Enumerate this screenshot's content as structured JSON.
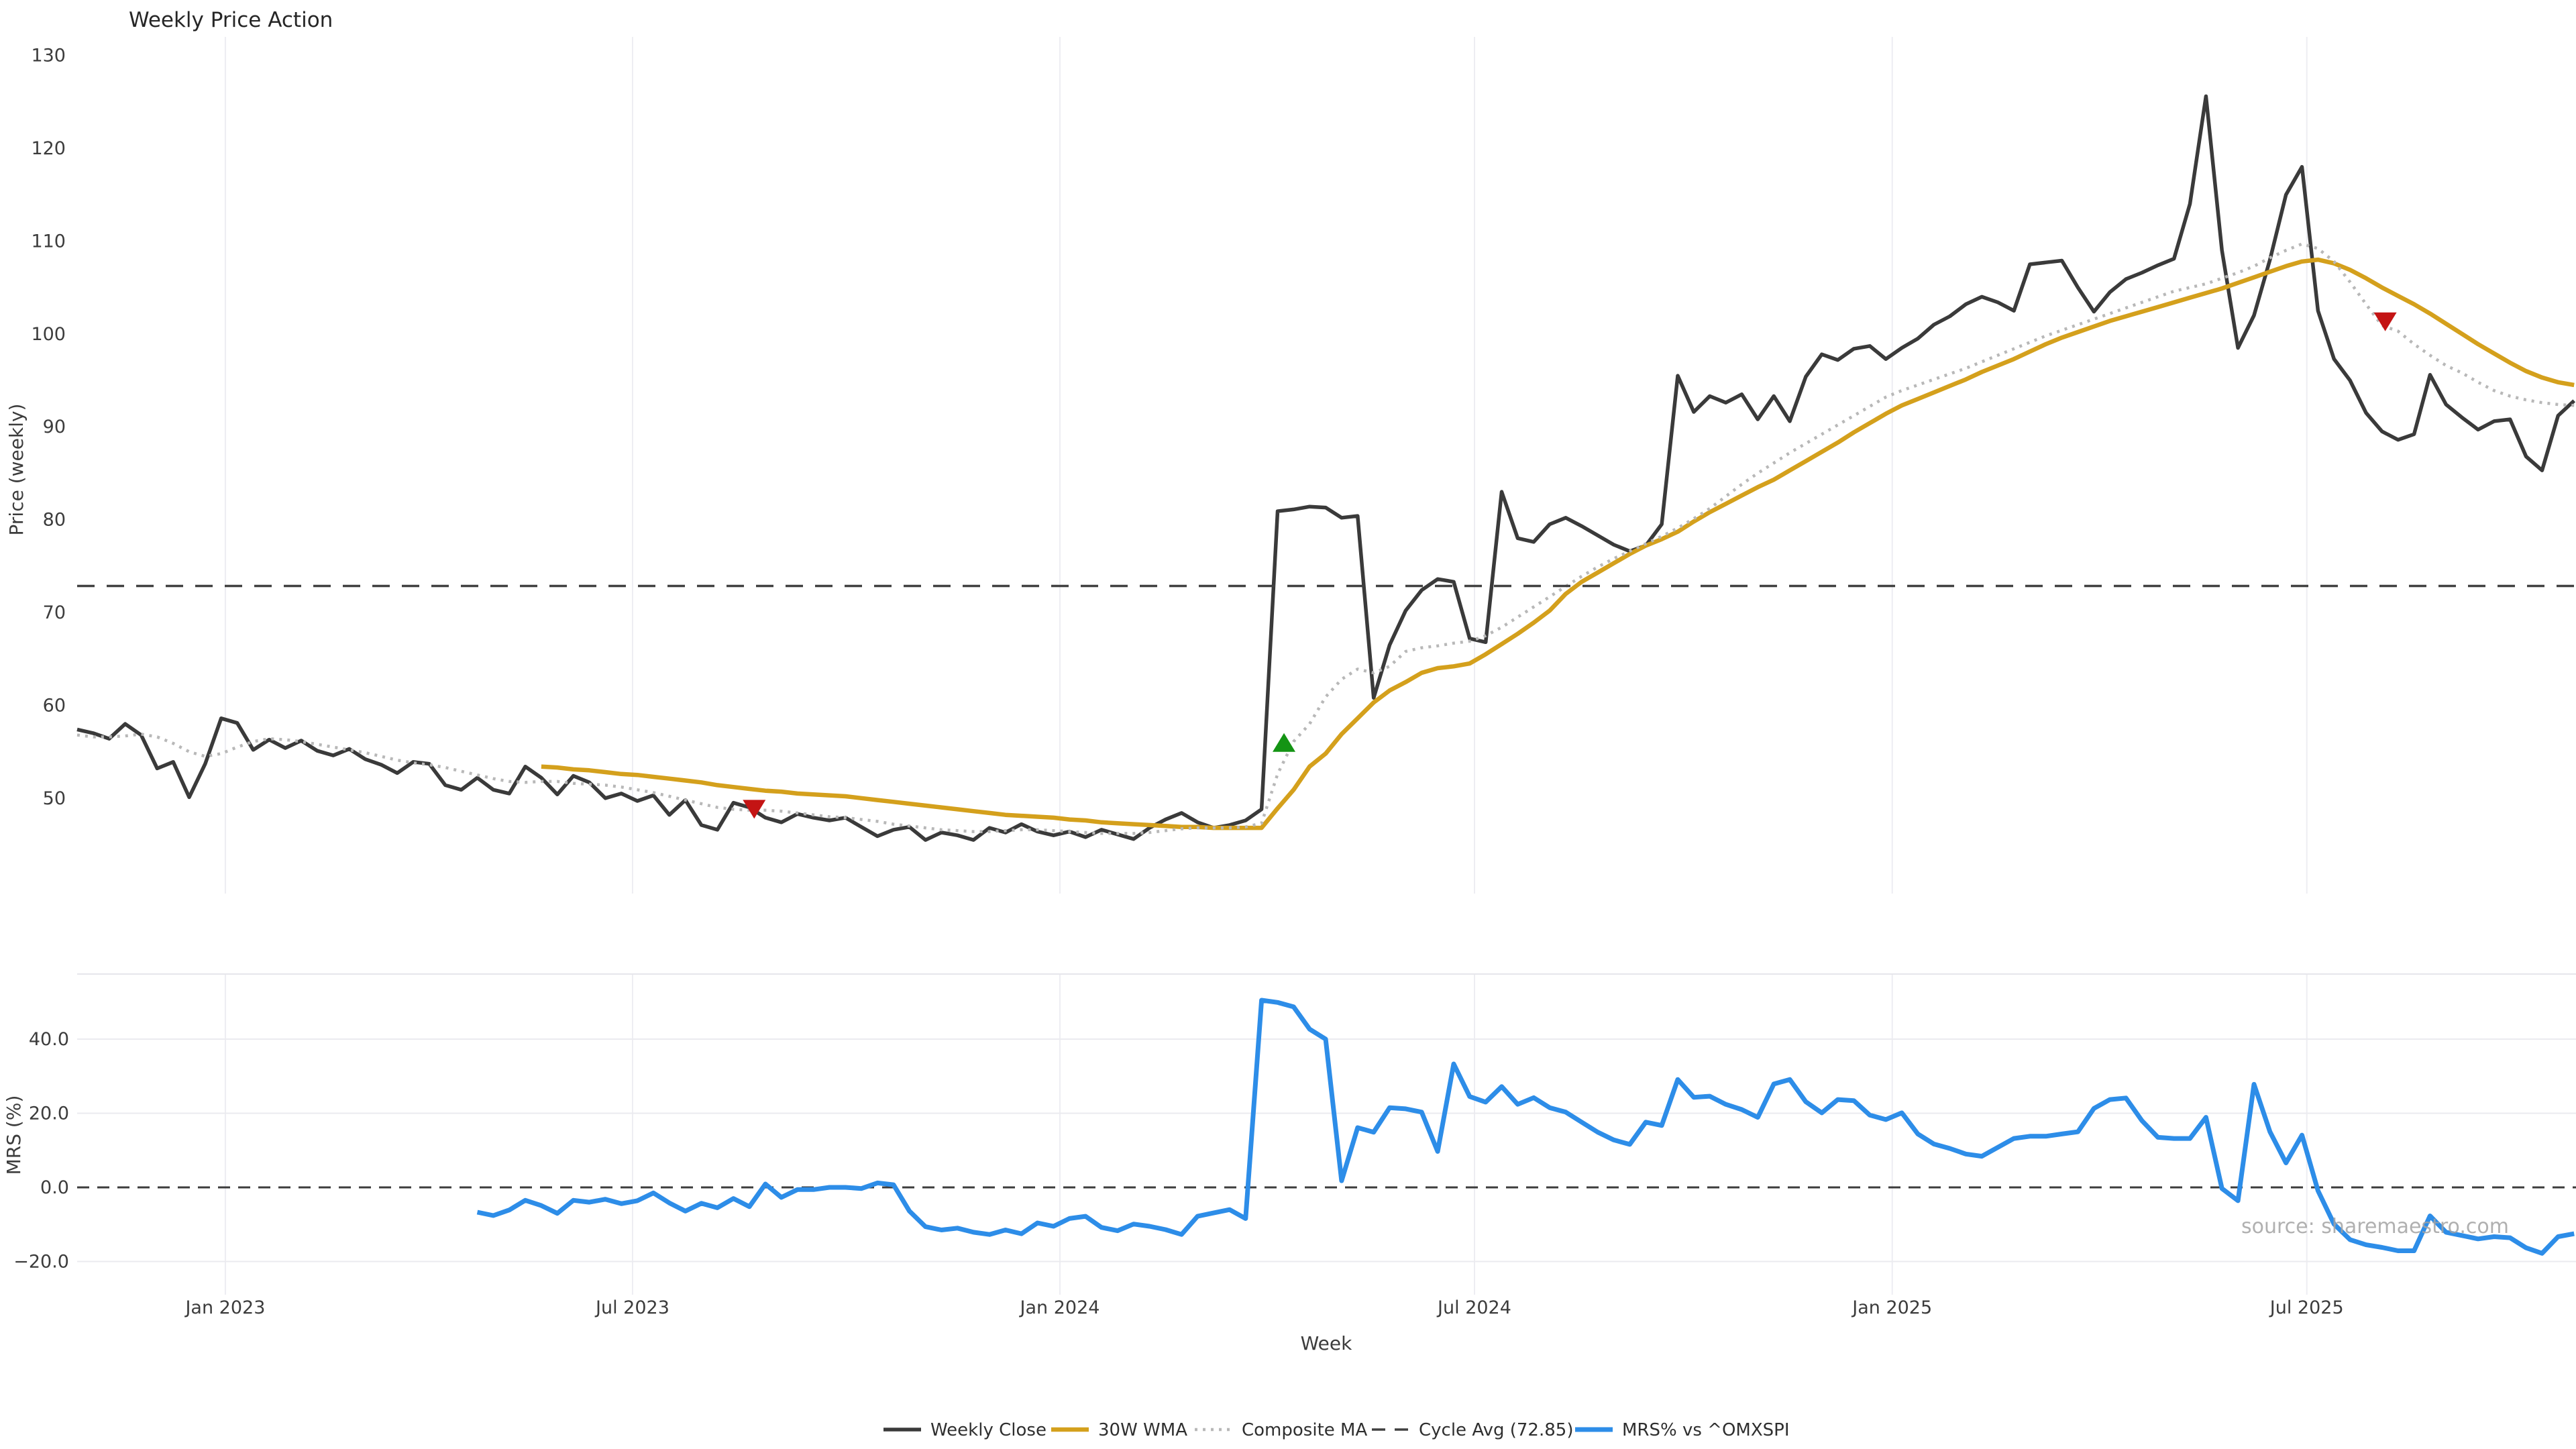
{
  "title": "Weekly Price Action",
  "watermark": "source: sharemaestro.com",
  "colors": {
    "close": "#3a3a3a",
    "wma": "#d4a01c",
    "composite": "#b8b8b8",
    "cycle": "#404040",
    "mrs": "#2d8de8",
    "sell": "#c41414",
    "buy": "#149414",
    "grid": "#ededf2",
    "panel_border": "#e6e6eb"
  },
  "chart_data": {
    "type": "line",
    "title": "Weekly Price Action",
    "xlabel": "Week",
    "weeks_total": 157,
    "x_tick_labels": [
      {
        "label": "Jan 2023",
        "week": 9.26
      },
      {
        "label": "Jul 2023",
        "week": 34.7
      },
      {
        "label": "Jan 2024",
        "week": 61.4
      },
      {
        "label": "Jul 2024",
        "week": 87.3
      },
      {
        "label": "Jan 2025",
        "week": 113.4
      },
      {
        "label": "Jul 2025",
        "week": 139.3
      }
    ],
    "panels": [
      {
        "ylabel": "Price (weekly)",
        "yticks": [
          {
            "label": "130",
            "v": 130
          },
          {
            "label": "120",
            "v": 120
          },
          {
            "label": "110",
            "v": 110
          },
          {
            "label": "100",
            "v": 100
          },
          {
            "label": "90",
            "v": 90
          },
          {
            "label": "80",
            "v": 80
          },
          {
            "label": "70",
            "v": 70
          },
          {
            "label": "60",
            "v": 60
          },
          {
            "label": "50",
            "v": 50
          }
        ],
        "grid_horizontal": false
      },
      {
        "ylabel": "MRS (%)",
        "yticks": [
          {
            "label": "40.0",
            "v": 40
          },
          {
            "label": "20.0",
            "v": 20
          },
          {
            "label": "0.0",
            "v": 0
          },
          {
            "label": "−20.0",
            "v": -20
          }
        ],
        "grid_horizontal": true,
        "zero_line": 0
      }
    ],
    "series": [
      {
        "name": "Weekly Close",
        "panel": 0,
        "style": "solid",
        "width": 5.5,
        "color": "#3a3a3a",
        "start_week": 0,
        "values": [
          57.4,
          57.0,
          56.4,
          58.0,
          56.8,
          53.2,
          53.9,
          50.1,
          53.7,
          58.6,
          58.1,
          55.2,
          56.3,
          55.4,
          56.2,
          55.1,
          54.6,
          55.3,
          54.2,
          53.6,
          52.7,
          53.9,
          53.7,
          51.4,
          50.9,
          52.2,
          50.9,
          50.5,
          53.4,
          52.2,
          50.4,
          52.4,
          51.7,
          50.0,
          50.5,
          49.7,
          50.3,
          48.2,
          49.8,
          47.1,
          46.6,
          49.5,
          49.0,
          47.9,
          47.4,
          48.3,
          47.9,
          47.6,
          47.9,
          46.9,
          45.9,
          46.6,
          46.9,
          45.5,
          46.3,
          46.0,
          45.5,
          46.8,
          46.3,
          47.2,
          46.4,
          46.0,
          46.4,
          45.8,
          46.6,
          46.1,
          45.6,
          46.8,
          47.7,
          48.4,
          47.4,
          46.8,
          47.1,
          47.6,
          48.8,
          80.9,
          81.1,
          81.4,
          81.3,
          80.2,
          80.4,
          60.8,
          66.5,
          70.2,
          72.4,
          73.6,
          73.3,
          67.2,
          66.8,
          83.0,
          78.0,
          77.6,
          79.5,
          80.2,
          79.3,
          78.3,
          77.3,
          76.6,
          77.2,
          79.5,
          95.5,
          91.6,
          93.3,
          92.6,
          93.5,
          90.8,
          93.3,
          90.6,
          95.4,
          97.8,
          97.2,
          98.4,
          98.7,
          97.3,
          98.5,
          99.5,
          101.0,
          101.9,
          103.2,
          104.0,
          103.4,
          102.5,
          107.5,
          107.7,
          107.9,
          105.0,
          102.4,
          104.5,
          105.9,
          106.6,
          107.4,
          108.1,
          114.0,
          125.6,
          109.0,
          98.5,
          102.0,
          108.0,
          115.0,
          118.0,
          102.5,
          97.3,
          95.0,
          91.5,
          89.5,
          88.6,
          89.2,
          95.6,
          92.4,
          91.0,
          89.7,
          90.6,
          90.8,
          86.8,
          85.3,
          91.2,
          92.8
        ]
      },
      {
        "name": "30W WMA",
        "panel": 0,
        "style": "solid",
        "width": 6.5,
        "color": "#d4a01c",
        "start_week": 29,
        "values": [
          53.4,
          53.3,
          53.1,
          53.0,
          52.8,
          52.6,
          52.5,
          52.3,
          52.1,
          51.9,
          51.7,
          51.4,
          51.2,
          51.0,
          50.8,
          50.7,
          50.5,
          50.4,
          50.3,
          50.2,
          50.0,
          49.8,
          49.6,
          49.4,
          49.2,
          49.0,
          48.8,
          48.6,
          48.4,
          48.2,
          48.1,
          48.0,
          47.9,
          47.7,
          47.6,
          47.4,
          47.3,
          47.2,
          47.1,
          47.0,
          46.9,
          46.9,
          46.8,
          46.8,
          46.8,
          46.8,
          48.9,
          50.9,
          53.4,
          54.8,
          56.9,
          58.6,
          60.3,
          61.6,
          62.5,
          63.5,
          64.0,
          64.2,
          64.5,
          65.5,
          66.6,
          67.7,
          68.9,
          70.2,
          72.0,
          73.3,
          74.3,
          75.3,
          76.3,
          77.2,
          77.9,
          78.7,
          79.8,
          80.8,
          81.7,
          82.6,
          83.5,
          84.3,
          85.3,
          86.3,
          87.3,
          88.3,
          89.4,
          90.4,
          91.4,
          92.3,
          93.0,
          93.7,
          94.4,
          95.1,
          95.9,
          96.6,
          97.3,
          98.1,
          98.9,
          99.6,
          100.2,
          100.8,
          101.4,
          101.9,
          102.4,
          102.9,
          103.4,
          103.9,
          104.4,
          104.9,
          105.5,
          106.1,
          106.7,
          107.3,
          107.8,
          108.0,
          107.6,
          106.9,
          106.0,
          105.0,
          104.1,
          103.2,
          102.2,
          101.1,
          100.0,
          98.9,
          97.9,
          96.9,
          96.0,
          95.3,
          94.8,
          94.5
        ]
      },
      {
        "name": "Composite MA",
        "panel": 0,
        "style": "dotted",
        "width": 4.5,
        "color": "#b8b8b8",
        "start_week": 0,
        "values": [
          56.8,
          56.6,
          56.6,
          56.7,
          56.9,
          56.6,
          55.9,
          55.0,
          54.5,
          54.8,
          55.5,
          56.1,
          56.4,
          56.3,
          56.1,
          55.8,
          55.5,
          55.2,
          54.9,
          54.5,
          54.1,
          53.8,
          53.6,
          53.3,
          52.9,
          52.5,
          52.1,
          51.8,
          51.7,
          51.8,
          51.8,
          51.6,
          51.5,
          51.4,
          51.2,
          50.9,
          50.6,
          50.2,
          49.8,
          49.4,
          49.0,
          48.8,
          48.7,
          48.7,
          48.6,
          48.4,
          48.2,
          48.0,
          47.9,
          47.7,
          47.5,
          47.2,
          47.0,
          46.8,
          46.6,
          46.5,
          46.4,
          46.4,
          46.5,
          46.6,
          46.6,
          46.5,
          46.4,
          46.3,
          46.2,
          46.2,
          46.2,
          46.3,
          46.5,
          46.7,
          46.8,
          46.8,
          46.8,
          46.9,
          47.3,
          52.6,
          56.1,
          58.0,
          60.9,
          62.8,
          63.9,
          63.5,
          64.2,
          65.8,
          66.2,
          66.4,
          66.7,
          66.9,
          67.5,
          68.4,
          69.5,
          70.6,
          71.7,
          72.8,
          73.9,
          74.9,
          75.8,
          76.6,
          77.4,
          78.2,
          79.1,
          80.1,
          81.2,
          82.5,
          83.8,
          85.0,
          86.1,
          87.2,
          88.2,
          89.2,
          90.2,
          91.2,
          92.2,
          93.2,
          93.9,
          94.5,
          95.1,
          95.7,
          96.3,
          97.0,
          97.7,
          98.4,
          99.1,
          99.8,
          100.4,
          101.0,
          101.6,
          102.2,
          102.8,
          103.4,
          104.0,
          104.6,
          105.0,
          105.4,
          106.0,
          106.6,
          107.3,
          108.2,
          109.0,
          109.7,
          109.2,
          107.8,
          105.6,
          103.2,
          100.9,
          100.3,
          98.9,
          97.7,
          96.6,
          95.8,
          94.8,
          93.9,
          93.3,
          92.9,
          92.6,
          92.4,
          92.3
        ]
      },
      {
        "name": "Cycle Avg (72.85)",
        "panel": 0,
        "style": "dashed",
        "width": 3.5,
        "color": "#404040",
        "hline": 72.85
      },
      {
        "name": "MRS% vs ^OMXSPI",
        "panel": 1,
        "style": "solid",
        "width": 7,
        "color": "#2d8de8",
        "start_week": 25,
        "values": [
          -6.7,
          -7.6,
          -6.1,
          -3.5,
          -4.9,
          -7.0,
          -3.5,
          -4.0,
          -3.2,
          -4.4,
          -3.6,
          -1.5,
          -4.2,
          -6.4,
          -4.3,
          -5.5,
          -3.0,
          -5.2,
          0.9,
          -2.7,
          -0.6,
          -0.6,
          0.0,
          0.0,
          -0.3,
          1.2,
          0.7,
          -6.4,
          -10.6,
          -11.5,
          -11.0,
          -12.1,
          -12.7,
          -11.5,
          -12.5,
          -9.6,
          -10.5,
          -8.4,
          -7.8,
          -10.8,
          -11.7,
          -9.9,
          -10.5,
          -11.4,
          -12.7,
          -7.8,
          -6.9,
          -6.0,
          -8.4,
          50.5,
          49.9,
          48.7,
          42.7,
          40.0,
          1.8,
          16.1,
          14.9,
          21.5,
          21.2,
          20.3,
          9.7,
          33.3,
          24.5,
          23.0,
          27.2,
          22.4,
          24.2,
          21.5,
          20.3,
          17.6,
          14.9,
          12.8,
          11.6,
          17.6,
          16.7,
          29.1,
          24.3,
          24.6,
          22.4,
          21.0,
          18.9,
          27.9,
          29.1,
          23.1,
          20.1,
          23.7,
          23.4,
          19.5,
          18.3,
          20.1,
          14.4,
          11.7,
          10.5,
          9.0,
          8.4,
          10.8,
          13.2,
          13.8,
          13.8,
          14.4,
          15.0,
          21.3,
          23.7,
          24.1,
          18.0,
          13.5,
          13.2,
          13.2,
          18.9,
          -0.3,
          -3.6,
          27.8,
          15.0,
          6.6,
          14.1,
          -0.9,
          -9.9,
          -14.1,
          -15.5,
          -16.2,
          -17.1,
          -17.1,
          -7.7,
          -12.1,
          -13.0,
          -13.9,
          -13.3,
          -13.6,
          -16.3,
          -17.8,
          -13.3,
          -12.5
        ]
      }
    ],
    "markers": [
      {
        "type": "sell",
        "week": 42.3,
        "price": 48.8
      },
      {
        "type": "buy",
        "week": 75.4,
        "price": 56.0
      },
      {
        "type": "sell",
        "week": 144.2,
        "price": 101.3
      }
    ],
    "legend_position": "bottom-center",
    "grid": "vertical-months"
  },
  "legend": {
    "items": [
      {
        "label": "Weekly Close",
        "style": "solid",
        "color": "#3a3a3a",
        "width": 5.5
      },
      {
        "label": "30W WMA",
        "style": "solid",
        "color": "#d4a01c",
        "width": 6.5
      },
      {
        "label": "Composite MA",
        "style": "dotted",
        "color": "#b8b8b8",
        "width": 4.5
      },
      {
        "label": "Cycle Avg (72.85)",
        "style": "dashed",
        "color": "#404040",
        "width": 3.5
      },
      {
        "label": "MRS% vs ^OMXSPI",
        "style": "solid",
        "color": "#2d8de8",
        "width": 7
      }
    ]
  }
}
